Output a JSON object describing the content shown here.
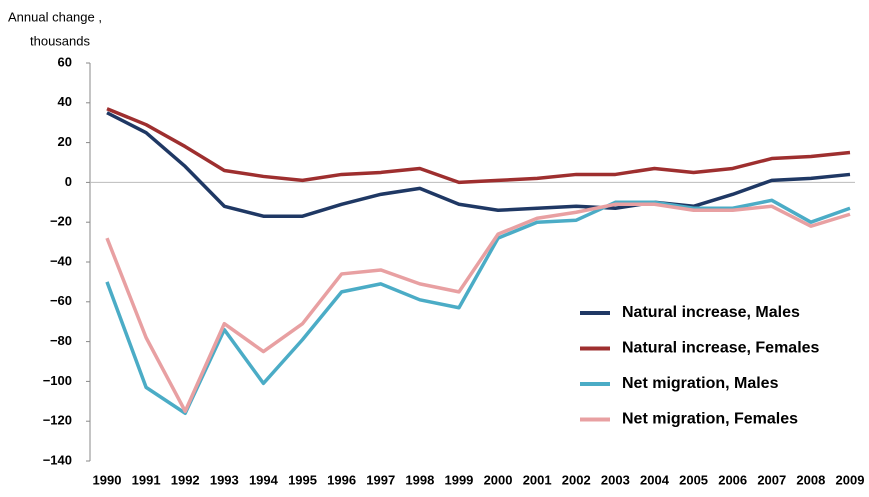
{
  "chart_data": {
    "type": "line",
    "ylabel": [
      "Annual change ,",
      "thousands"
    ],
    "categories": [
      "1990",
      "1991",
      "1992",
      "1993",
      "1994",
      "1995",
      "1996",
      "1997",
      "1998",
      "1999",
      "2000",
      "2001",
      "2002",
      "2003",
      "2004",
      "2005",
      "2006",
      "2007",
      "2008",
      "2009"
    ],
    "series": [
      {
        "name": "Natural increase, Males",
        "color": "#1f3864",
        "values": [
          35,
          25,
          8,
          -12,
          -17,
          -17,
          -11,
          -6,
          -3,
          -11,
          -14,
          -13,
          -12,
          -13,
          -10,
          -12,
          -6,
          1,
          2,
          4
        ]
      },
      {
        "name": "Natural increase, Females",
        "color": "#9e2f2f",
        "values": [
          37,
          29,
          18,
          6,
          3,
          1,
          4,
          5,
          7,
          0,
          1,
          2,
          4,
          4,
          7,
          5,
          7,
          12,
          13,
          15
        ]
      },
      {
        "name": "Net migration, Males",
        "color": "#4bacc6",
        "values": [
          -50,
          -103,
          -116,
          -74,
          -101,
          -79,
          -55,
          -51,
          -59,
          -63,
          -28,
          -20,
          -19,
          -10,
          -10,
          -13,
          -13,
          -9,
          -20,
          -13
        ]
      },
      {
        "name": "Net migration, Females",
        "color": "#e8a0a2",
        "values": [
          -28,
          -78,
          -115,
          -71,
          -85,
          -71,
          -46,
          -44,
          -51,
          -55,
          -26,
          -18,
          -15,
          -11,
          -11,
          -14,
          -14,
          -12,
          -22,
          -16
        ]
      }
    ],
    "ylim": [
      -140,
      60
    ],
    "yticks": [
      60,
      40,
      20,
      0,
      {
        "value": -20,
        "label": "−20"
      },
      {
        "value": -40,
        "label": "−40"
      },
      {
        "value": -60,
        "label": "−60"
      },
      {
        "value": -80,
        "label": "−80"
      },
      {
        "value": -100,
        "label": "−100"
      },
      {
        "value": -120,
        "label": "−120"
      },
      {
        "value": -140,
        "label": "−140"
      }
    ],
    "legend": "lower right"
  }
}
